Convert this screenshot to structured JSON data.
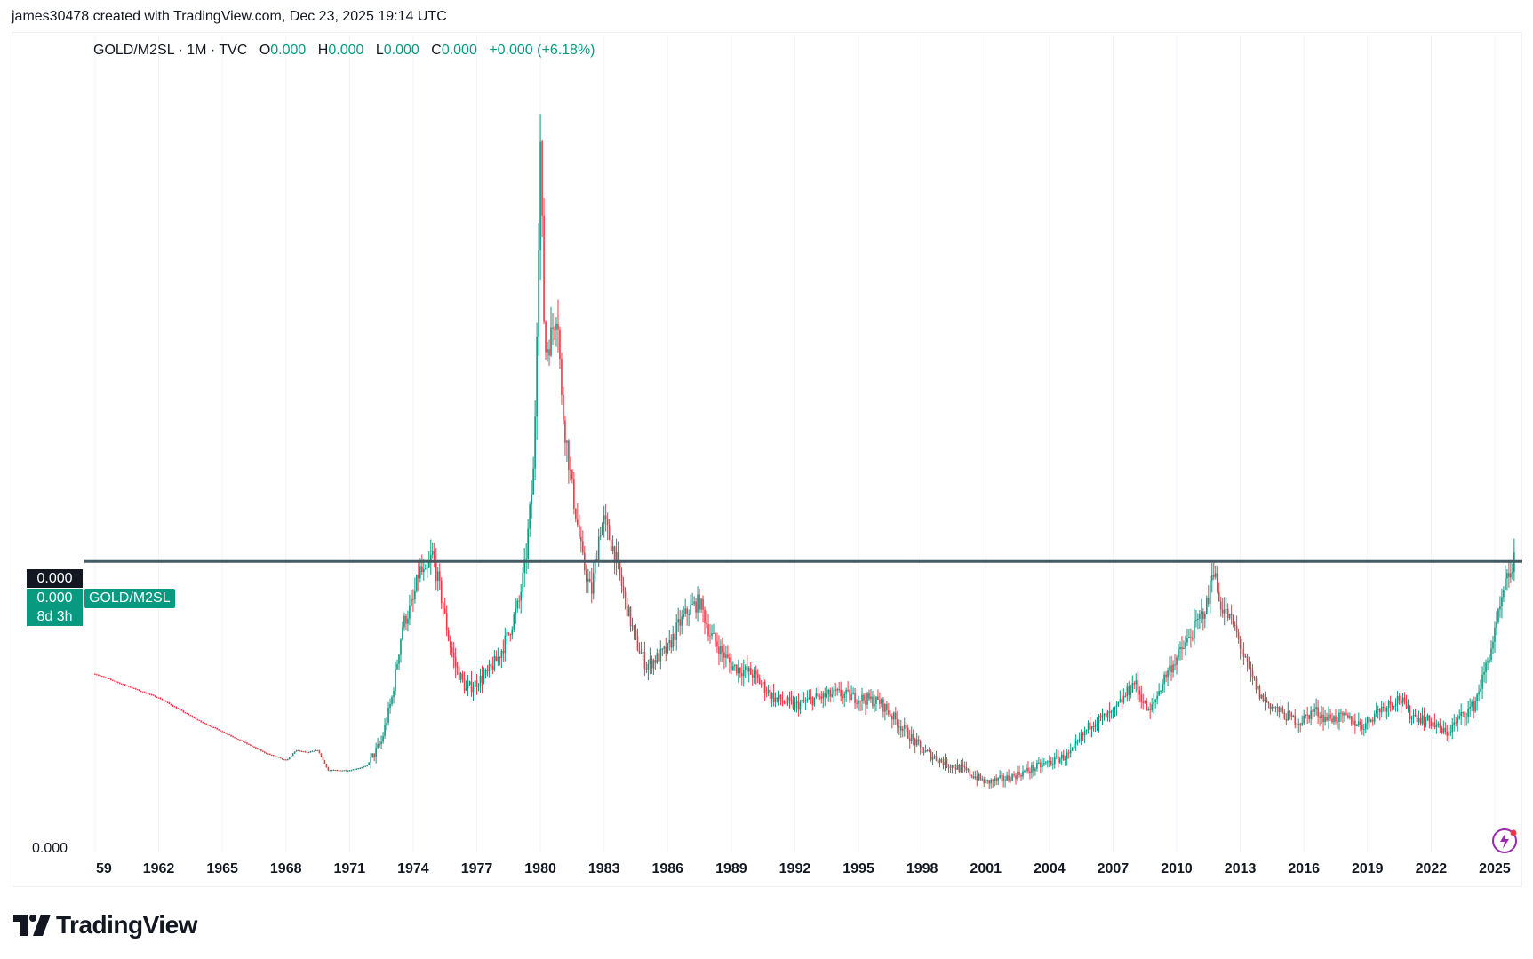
{
  "header": {
    "credit": "james30478 created with TradingView.com, Dec 23, 2025 19:14 UTC"
  },
  "legend": {
    "symbol": "GOLD/M2SL · 1M · TVC",
    "o_key": "O",
    "o_val": "0.000",
    "h_key": "H",
    "h_val": "0.000",
    "l_key": "L",
    "l_val": "0.000",
    "c_key": "C",
    "c_val": "0.000",
    "change": "+0.000 (+6.18%)"
  },
  "price_scale": {
    "crosshair_value": "0.000",
    "last_value": "0.000",
    "countdown": "8d 3h",
    "bottom_tick": "0.000",
    "series_tag": "GOLD/M2SL"
  },
  "brand": {
    "name": "TradingView"
  },
  "icons": {
    "brand_logo": "tradingview-logo-icon",
    "lightning": "lightning-icon"
  },
  "colors": {
    "up": "#089981",
    "down": "#f23645",
    "line": "#455a64",
    "text": "#131722"
  },
  "chart_data": {
    "type": "candlestick",
    "series_name": "GOLD/M2SL",
    "timeframe": "1M",
    "x_ticks": [
      "59",
      "1962",
      "1965",
      "1968",
      "1971",
      "1974",
      "1977",
      "1980",
      "1983",
      "1986",
      "1989",
      "1992",
      "1995",
      "1998",
      "2001",
      "2004",
      "2007",
      "2010",
      "2013",
      "2016",
      "2019",
      "2022",
      "2025"
    ],
    "x_range": [
      1958.5,
      2026.3
    ],
    "y_range_relative": [
      0,
      1
    ],
    "horizontal_line_level": 0.36,
    "profile": [
      [
        1959.0,
        0.22
      ],
      [
        1960.0,
        0.21
      ],
      [
        1961.0,
        0.2
      ],
      [
        1962.0,
        0.19
      ],
      [
        1963.0,
        0.175
      ],
      [
        1964.0,
        0.16
      ],
      [
        1965.0,
        0.148
      ],
      [
        1966.0,
        0.135
      ],
      [
        1967.0,
        0.122
      ],
      [
        1968.0,
        0.112
      ],
      [
        1968.5,
        0.125
      ],
      [
        1969.0,
        0.122
      ],
      [
        1969.5,
        0.125
      ],
      [
        1970.0,
        0.1
      ],
      [
        1971.0,
        0.1
      ],
      [
        1971.8,
        0.105
      ],
      [
        1972.5,
        0.135
      ],
      [
        1973.0,
        0.19
      ],
      [
        1973.5,
        0.28
      ],
      [
        1974.0,
        0.31
      ],
      [
        1974.3,
        0.35
      ],
      [
        1974.6,
        0.34
      ],
      [
        1974.9,
        0.37
      ],
      [
        1975.3,
        0.32
      ],
      [
        1975.7,
        0.26
      ],
      [
        1976.0,
        0.23
      ],
      [
        1976.5,
        0.2
      ],
      [
        1977.0,
        0.21
      ],
      [
        1977.5,
        0.22
      ],
      [
        1978.0,
        0.24
      ],
      [
        1978.5,
        0.27
      ],
      [
        1979.0,
        0.31
      ],
      [
        1979.3,
        0.36
      ],
      [
        1979.7,
        0.48
      ],
      [
        1980.0,
        0.88
      ],
      [
        1980.2,
        0.62
      ],
      [
        1980.5,
        0.64
      ],
      [
        1980.8,
        0.68
      ],
      [
        1981.0,
        0.56
      ],
      [
        1981.5,
        0.45
      ],
      [
        1982.0,
        0.36
      ],
      [
        1982.4,
        0.32
      ],
      [
        1982.8,
        0.4
      ],
      [
        1983.0,
        0.41
      ],
      [
        1983.5,
        0.37
      ],
      [
        1984.0,
        0.31
      ],
      [
        1984.5,
        0.26
      ],
      [
        1985.0,
        0.23
      ],
      [
        1985.5,
        0.24
      ],
      [
        1986.0,
        0.25
      ],
      [
        1986.5,
        0.28
      ],
      [
        1987.0,
        0.3
      ],
      [
        1987.5,
        0.31
      ],
      [
        1988.0,
        0.27
      ],
      [
        1989.0,
        0.23
      ],
      [
        1990.0,
        0.22
      ],
      [
        1991.0,
        0.19
      ],
      [
        1992.0,
        0.18
      ],
      [
        1993.0,
        0.19
      ],
      [
        1994.0,
        0.195
      ],
      [
        1995.0,
        0.19
      ],
      [
        1996.0,
        0.185
      ],
      [
        1997.0,
        0.155
      ],
      [
        1998.0,
        0.125
      ],
      [
        1999.0,
        0.11
      ],
      [
        2000.0,
        0.1
      ],
      [
        2001.0,
        0.085
      ],
      [
        2002.0,
        0.09
      ],
      [
        2003.0,
        0.1
      ],
      [
        2004.0,
        0.11
      ],
      [
        2005.0,
        0.12
      ],
      [
        2006.0,
        0.16
      ],
      [
        2007.0,
        0.17
      ],
      [
        2008.0,
        0.21
      ],
      [
        2008.7,
        0.17
      ],
      [
        2009.5,
        0.22
      ],
      [
        2010.5,
        0.26
      ],
      [
        2011.5,
        0.31
      ],
      [
        2011.7,
        0.36
      ],
      [
        2012.0,
        0.31
      ],
      [
        2012.7,
        0.28
      ],
      [
        2013.3,
        0.23
      ],
      [
        2014.0,
        0.19
      ],
      [
        2015.0,
        0.17
      ],
      [
        2015.8,
        0.16
      ],
      [
        2016.5,
        0.175
      ],
      [
        2017.0,
        0.165
      ],
      [
        2018.0,
        0.165
      ],
      [
        2018.8,
        0.155
      ],
      [
        2019.5,
        0.175
      ],
      [
        2020.5,
        0.19
      ],
      [
        2021.0,
        0.17
      ],
      [
        2022.0,
        0.16
      ],
      [
        2022.7,
        0.145
      ],
      [
        2023.5,
        0.17
      ],
      [
        2024.0,
        0.18
      ],
      [
        2024.5,
        0.22
      ],
      [
        2025.0,
        0.27
      ],
      [
        2025.5,
        0.33
      ],
      [
        2025.9,
        0.36
      ]
    ]
  }
}
